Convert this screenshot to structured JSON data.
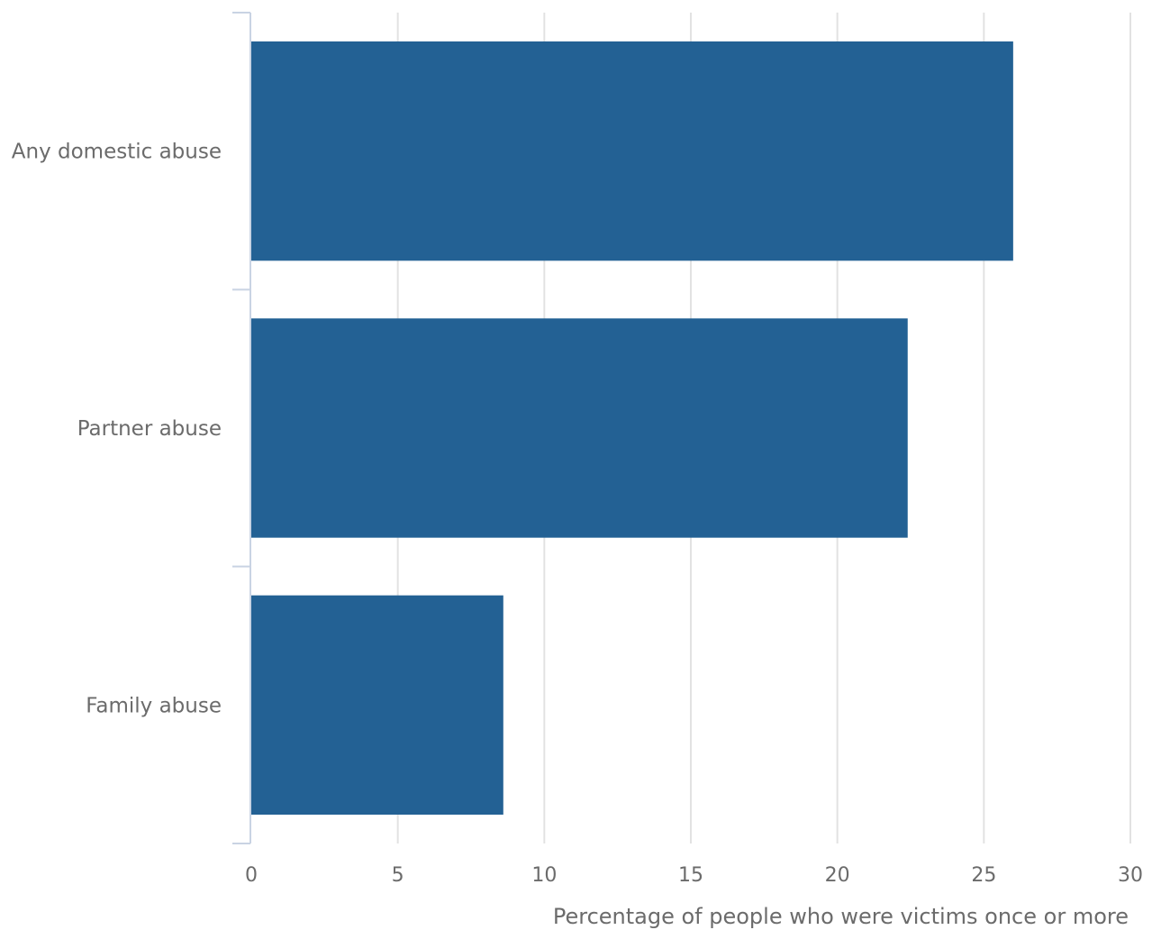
{
  "chart_data": {
    "type": "bar",
    "orientation": "horizontal",
    "title": "",
    "xlabel": "Percentage of people who were victims once or more",
    "ylabel": "",
    "categories": [
      "Any domestic abuse",
      "Partner abuse",
      "Family abuse"
    ],
    "series": [
      {
        "values": [
          26.0,
          22.4,
          8.6
        ]
      }
    ],
    "xlim": [
      0,
      30
    ],
    "xticks": [
      "0",
      "5",
      "10",
      "15",
      "20",
      "25",
      "30"
    ],
    "grid": "vertical",
    "legend": "none",
    "colors": {
      "bar": "#236194",
      "grid": "#e2e2e2",
      "axis": "#c9d3e3",
      "text": "#6b6b6b"
    }
  }
}
